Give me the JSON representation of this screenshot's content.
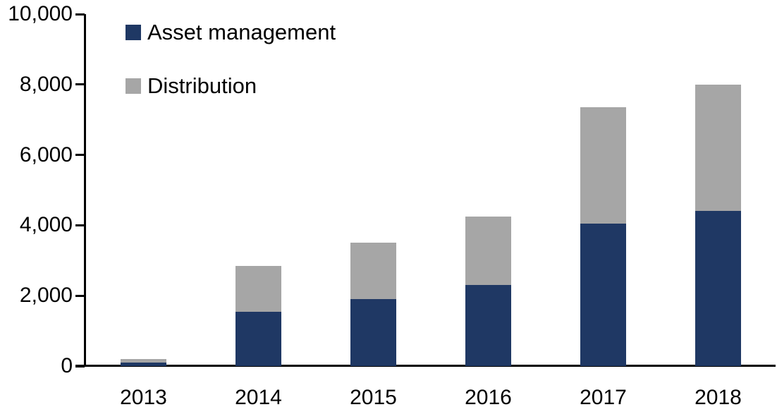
{
  "chart_data": {
    "type": "bar",
    "stacked": true,
    "title": "",
    "xlabel": "",
    "ylabel": "",
    "categories": [
      "2013",
      "2014",
      "2015",
      "2016",
      "2017",
      "2018"
    ],
    "series": [
      {
        "name": "Asset management",
        "color": "#1F3864",
        "values": [
          100,
          1550,
          1900,
          2300,
          4050,
          4400
        ]
      },
      {
        "name": "Distribution",
        "color": "#A6A6A6",
        "values": [
          100,
          1300,
          1600,
          1950,
          3300,
          3600
        ]
      }
    ],
    "totals": [
      200,
      2850,
      3500,
      4250,
      7350,
      8000
    ],
    "ylim": [
      0,
      10000
    ],
    "yticks": [
      {
        "value": 0,
        "label": "0"
      },
      {
        "value": 2000,
        "label": "2,000"
      },
      {
        "value": 4000,
        "label": "4,000"
      },
      {
        "value": 6000,
        "label": "6,000"
      },
      {
        "value": 8000,
        "label": "8,000"
      },
      {
        "value": 10000,
        "label": "10,000"
      }
    ],
    "grid": false,
    "legend_position": "top-left",
    "axis_color": "#000000",
    "background_color": "#FFFFFF"
  }
}
